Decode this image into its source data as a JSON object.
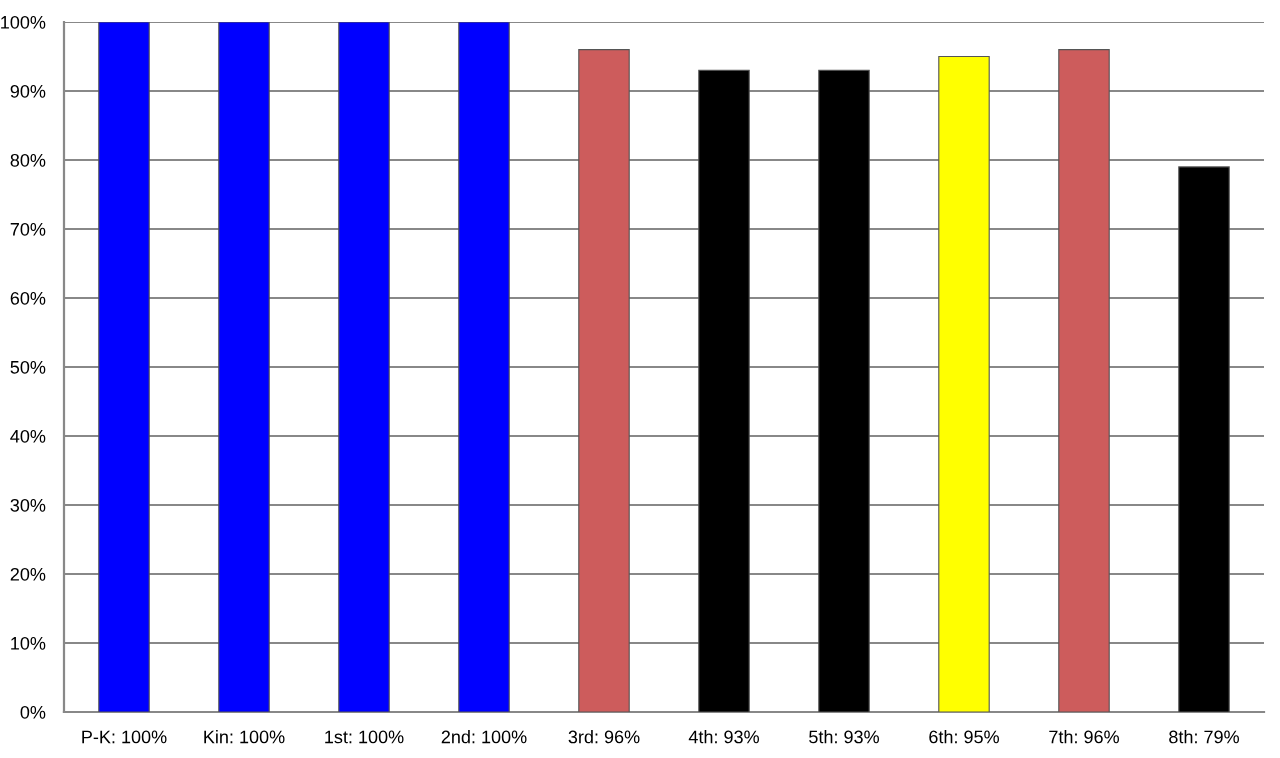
{
  "chart_data": {
    "type": "bar",
    "categories": [
      "P-K: 100%",
      "Kin: 100%",
      "1st: 100%",
      "2nd: 100%",
      "3rd: 96%",
      "4th: 93%",
      "5th: 93%",
      "6th: 95%",
      "7th: 96%",
      "8th: 79%"
    ],
    "values": [
      100,
      100,
      100,
      100,
      96,
      93,
      93,
      95,
      96,
      79
    ],
    "colors": [
      "#0000ff",
      "#0000ff",
      "#0000ff",
      "#0000ff",
      "#cd5c5c",
      "#000000",
      "#000000",
      "#ffff00",
      "#cd5c5c",
      "#000000"
    ],
    "ylim": [
      0,
      100
    ],
    "yticks": [
      {
        "value": 0,
        "label": "0%"
      },
      {
        "value": 10,
        "label": "10%"
      },
      {
        "value": 20,
        "label": "20%"
      },
      {
        "value": 30,
        "label": "30%"
      },
      {
        "value": 40,
        "label": "40%"
      },
      {
        "value": 50,
        "label": "50%"
      },
      {
        "value": 60,
        "label": "60%"
      },
      {
        "value": 70,
        "label": "70%"
      },
      {
        "value": 80,
        "label": "80%"
      },
      {
        "value": 90,
        "label": "90%"
      },
      {
        "value": 100,
        "label": "100%"
      }
    ],
    "grid": "y"
  }
}
